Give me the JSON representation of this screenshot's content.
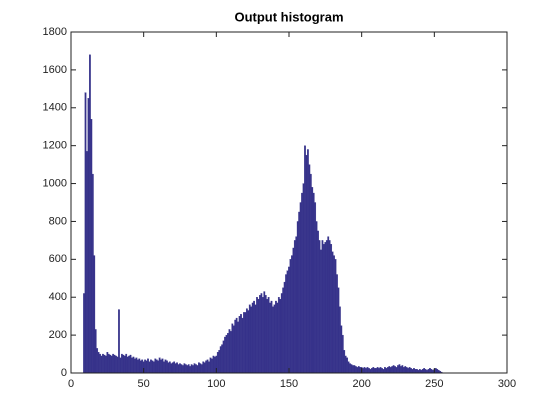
{
  "chart_data": {
    "type": "bar",
    "title": "Output histogram",
    "color": "#36328a",
    "x": [
      0,
      1,
      2,
      3,
      4,
      5,
      6,
      7,
      8,
      9,
      10,
      11,
      12,
      13,
      14,
      15,
      16,
      17,
      18,
      19,
      20,
      21,
      22,
      23,
      24,
      25,
      26,
      27,
      28,
      29,
      30,
      31,
      32,
      33,
      34,
      35,
      36,
      37,
      38,
      39,
      40,
      41,
      42,
      43,
      44,
      45,
      46,
      47,
      48,
      49,
      50,
      51,
      52,
      53,
      54,
      55,
      56,
      57,
      58,
      59,
      60,
      61,
      62,
      63,
      64,
      65,
      66,
      67,
      68,
      69,
      70,
      71,
      72,
      73,
      74,
      75,
      76,
      77,
      78,
      79,
      80,
      81,
      82,
      83,
      84,
      85,
      86,
      87,
      88,
      89,
      90,
      91,
      92,
      93,
      94,
      95,
      96,
      97,
      98,
      99,
      100,
      101,
      102,
      103,
      104,
      105,
      106,
      107,
      108,
      109,
      110,
      111,
      112,
      113,
      114,
      115,
      116,
      117,
      118,
      119,
      120,
      121,
      122,
      123,
      124,
      125,
      126,
      127,
      128,
      129,
      130,
      131,
      132,
      133,
      134,
      135,
      136,
      137,
      138,
      139,
      140,
      141,
      142,
      143,
      144,
      145,
      146,
      147,
      148,
      149,
      150,
      151,
      152,
      153,
      154,
      155,
      156,
      157,
      158,
      159,
      160,
      161,
      162,
      163,
      164,
      165,
      166,
      167,
      168,
      169,
      170,
      171,
      172,
      173,
      174,
      175,
      176,
      177,
      178,
      179,
      180,
      181,
      182,
      183,
      184,
      185,
      186,
      187,
      188,
      189,
      190,
      191,
      192,
      193,
      194,
      195,
      196,
      197,
      198,
      199,
      200,
      201,
      202,
      203,
      204,
      205,
      206,
      207,
      208,
      209,
      210,
      211,
      212,
      213,
      214,
      215,
      216,
      217,
      218,
      219,
      220,
      221,
      222,
      223,
      224,
      225,
      226,
      227,
      228,
      229,
      230,
      231,
      232,
      233,
      234,
      235,
      236,
      237,
      238,
      239,
      240,
      241,
      242,
      243,
      244,
      245,
      246,
      247,
      248,
      249,
      250,
      251,
      252,
      253,
      254,
      255
    ],
    "values": [
      0,
      0,
      0,
      0,
      0,
      0,
      0,
      0,
      0,
      420,
      1480,
      1170,
      1450,
      1680,
      1340,
      1050,
      620,
      230,
      130,
      110,
      100,
      90,
      100,
      95,
      90,
      110,
      100,
      95,
      90,
      100,
      95,
      90,
      85,
      335,
      80,
      100,
      95,
      90,
      100,
      85,
      90,
      95,
      80,
      85,
      75,
      80,
      70,
      75,
      65,
      70,
      60,
      70,
      65,
      75,
      60,
      70,
      65,
      60,
      75,
      70,
      65,
      80,
      70,
      75,
      60,
      70,
      65,
      55,
      60,
      50,
      55,
      60,
      50,
      55,
      45,
      50,
      45,
      40,
      50,
      45,
      40,
      45,
      35,
      45,
      40,
      50,
      45,
      40,
      55,
      50,
      45,
      60,
      55,
      65,
      70,
      60,
      80,
      75,
      90,
      85,
      90,
      110,
      120,
      140,
      150,
      170,
      190,
      200,
      210,
      230,
      220,
      260,
      250,
      280,
      290,
      270,
      300,
      310,
      290,
      320,
      320,
      340,
      330,
      360,
      350,
      370,
      380,
      360,
      400,
      390,
      410,
      420,
      400,
      430,
      410,
      390,
      400,
      370,
      380,
      350,
      360,
      380,
      370,
      400,
      390,
      420,
      450,
      480,
      520,
      540,
      560,
      600,
      620,
      660,
      700,
      720,
      800,
      850,
      900,
      950,
      1000,
      1200,
      1150,
      1180,
      1100,
      1050,
      980,
      950,
      900,
      800,
      750,
      700,
      650,
      700,
      680,
      690,
      700,
      720,
      700,
      680,
      640,
      620,
      600,
      520,
      450,
      350,
      250,
      200,
      120,
      90,
      80,
      60,
      50,
      45,
      40,
      40,
      35,
      30,
      35,
      30,
      30,
      25,
      30,
      25,
      30,
      25,
      20,
      25,
      30,
      25,
      25,
      30,
      25,
      30,
      25,
      20,
      30,
      25,
      30,
      35,
      30,
      35,
      40,
      35,
      30,
      40,
      45,
      35,
      40,
      30,
      35,
      30,
      25,
      30,
      25,
      20,
      25,
      20,
      20,
      15,
      20,
      15,
      20,
      25,
      20,
      15,
      20,
      25,
      20,
      15,
      20,
      25,
      20,
      15,
      10,
      5
    ],
    "xlim": [
      0,
      300
    ],
    "xticks": [
      0,
      50,
      100,
      150,
      200,
      250,
      300
    ],
    "ylim": [
      0,
      1800
    ],
    "yticks": [
      0,
      200,
      400,
      600,
      800,
      1000,
      1200,
      1400,
      1600,
      1800
    ]
  }
}
